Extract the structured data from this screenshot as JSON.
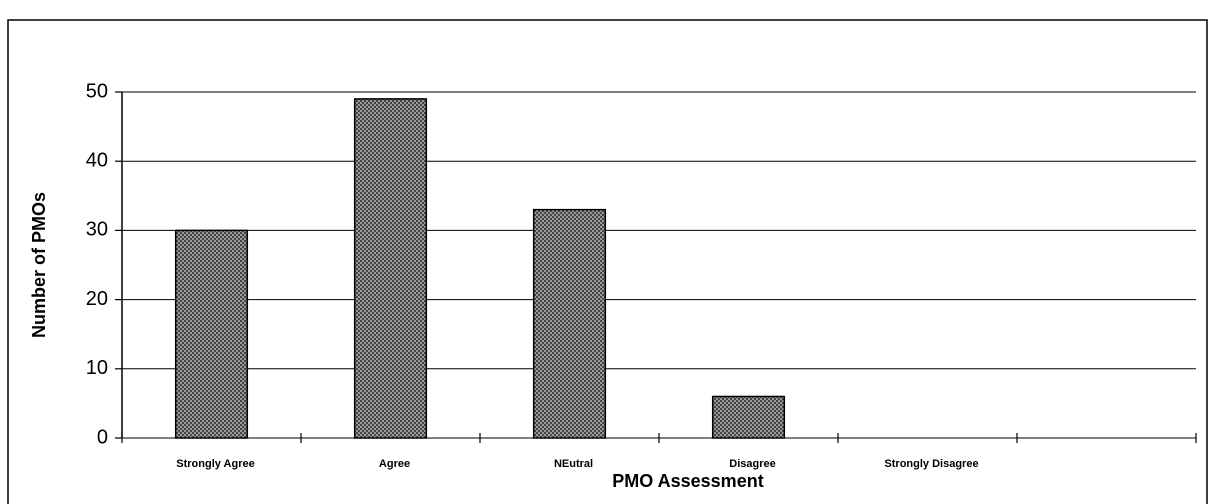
{
  "chart_data": {
    "type": "bar",
    "x_label": "PMO Assessment",
    "y_label": "Number of PMOs",
    "categories": [
      "Strongly Agree",
      "Agree",
      "NEutral",
      "Disagree",
      "Strongly Disagree",
      null
    ],
    "values": [
      30,
      49,
      33,
      6,
      0,
      null
    ],
    "color": "#9a9a9a",
    "ylim": [
      0,
      50
    ],
    "yticks": [
      0,
      10,
      20,
      30,
      40,
      50
    ],
    "grid": true
  }
}
